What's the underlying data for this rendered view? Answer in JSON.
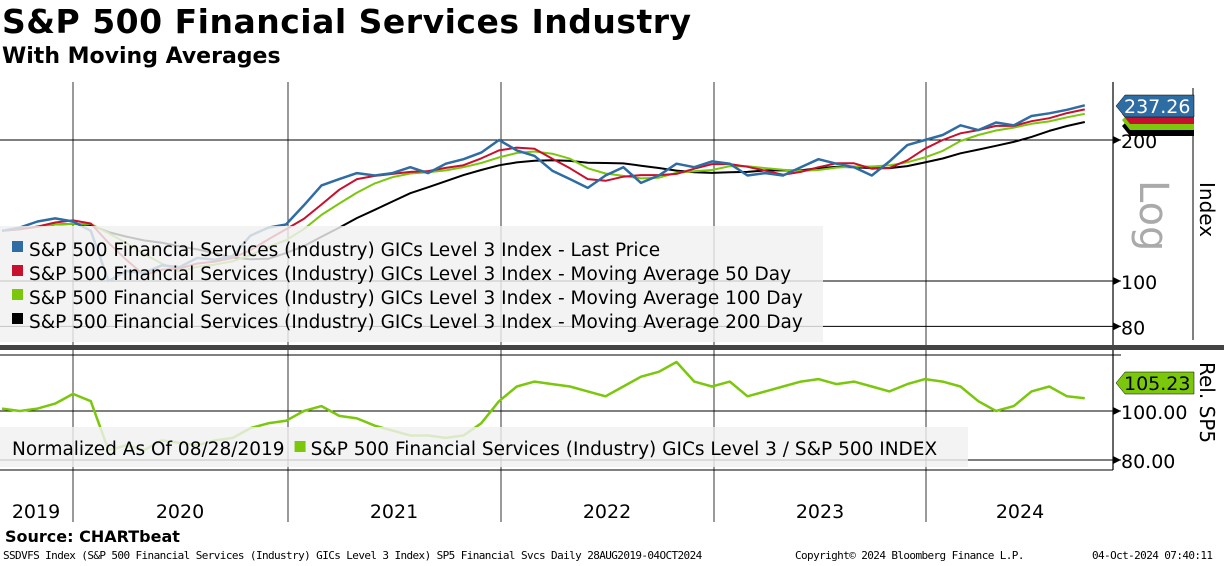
{
  "title": "S&P 500 Financial Services Industry",
  "subtitle": "With Moving Averages",
  "source": "Source: CHARTbeat",
  "footer": {
    "left": "SSDVFS Index (S&P 500 Financial Services (Industry) GICs Level 3 Index) SP5 Financial Svcs  Daily 28AUG2019-04OCT2024",
    "center": "Copyright© 2024 Bloomberg Finance L.P.",
    "right": "04-Oct-2024 07:40:11"
  },
  "colors": {
    "price": "#2e6ca4",
    "ma50": "#c8102e",
    "ma100": "#7ac70c",
    "ma200": "#000000",
    "rel": "#7ac70c"
  },
  "chart_data": [
    {
      "type": "line",
      "title": "S&P 500 Financial Services (Industry) GICs Level 3 Index",
      "ylabel": "Index",
      "scale": "Log",
      "scale_label": "Log",
      "yticks": [
        80,
        100,
        200
      ],
      "ytick_labels": [
        "80",
        "100",
        "200"
      ],
      "ylim": [
        75,
        266
      ],
      "xtick_labels": [
        "2019",
        "2020",
        "2021",
        "2022",
        "2023",
        "2024"
      ],
      "last_value_label": "237.26",
      "legend": [
        "S&P 500 Financial Services (Industry) GICs Level 3 Index - Last Price",
        "S&P 500 Financial Services (Industry) GICs Level 3 Index - Moving Average 50 Day",
        "S&P 500 Financial Services (Industry) GICs Level 3 Index - Moving Average 100 Day",
        "S&P 500 Financial Services (Industry) GICs Level 3 Index - Moving Average 200 Day"
      ],
      "ma_windows_months": [
        2.5,
        5,
        10
      ],
      "x": [
        "2019-09",
        "2019-10",
        "2019-11",
        "2019-12",
        "2020-01",
        "2020-02",
        "2020-03",
        "2020-04",
        "2020-05",
        "2020-06",
        "2020-07",
        "2020-08",
        "2020-09",
        "2020-10",
        "2020-11",
        "2020-12",
        "2021-01",
        "2021-02",
        "2021-03",
        "2021-04",
        "2021-05",
        "2021-06",
        "2021-07",
        "2021-08",
        "2021-09",
        "2021-10",
        "2021-11",
        "2021-12",
        "2022-01",
        "2022-02",
        "2022-03",
        "2022-04",
        "2022-05",
        "2022-06",
        "2022-07",
        "2022-08",
        "2022-09",
        "2022-10",
        "2022-11",
        "2022-12",
        "2023-01",
        "2023-02",
        "2023-03",
        "2023-04",
        "2023-05",
        "2023-06",
        "2023-07",
        "2023-08",
        "2023-09",
        "2023-10",
        "2023-11",
        "2023-12",
        "2024-01",
        "2024-02",
        "2024-03",
        "2024-04",
        "2024-05",
        "2024-06",
        "2024-07",
        "2024-08",
        "2024-09",
        "2024-10"
      ],
      "price": [
        128,
        130,
        134,
        136,
        134,
        128,
        100,
        105,
        104,
        108,
        107,
        112,
        111,
        113,
        125,
        130,
        132,
        145,
        160,
        165,
        170,
        168,
        170,
        175,
        170,
        178,
        182,
        188,
        200,
        190,
        185,
        172,
        165,
        158,
        168,
        175,
        162,
        168,
        178,
        175,
        180,
        178,
        168,
        170,
        168,
        175,
        182,
        178,
        175,
        168,
        180,
        195,
        200,
        205,
        215,
        210,
        218,
        215,
        225,
        228,
        232,
        237.26
      ]
    },
    {
      "type": "line",
      "ylabel": "Rel. SP5",
      "yticks": [
        80,
        100
      ],
      "ytick_labels": [
        "80.00",
        "100.00"
      ],
      "ylim": [
        78,
        123
      ],
      "last_value_label": "105.23",
      "legend": {
        "prefix": "Normalized As Of 08/28/2019",
        "series": "S&P 500 Financial Services (Industry) GICs Level 3 / S&P 500 INDEX"
      },
      "values": [
        101,
        100,
        101,
        103,
        107,
        104,
        84,
        86,
        84,
        88,
        87,
        86,
        88,
        89,
        93,
        95,
        96,
        100,
        102,
        98,
        97,
        94,
        92,
        90,
        90,
        89,
        90,
        95,
        104,
        110,
        112,
        111,
        110,
        108,
        106,
        110,
        114,
        116,
        120,
        112,
        110,
        112,
        106,
        108,
        110,
        112,
        113,
        111,
        112,
        110,
        108,
        111,
        113,
        112,
        110,
        104,
        100,
        102,
        108,
        110,
        106,
        105.23
      ]
    }
  ]
}
